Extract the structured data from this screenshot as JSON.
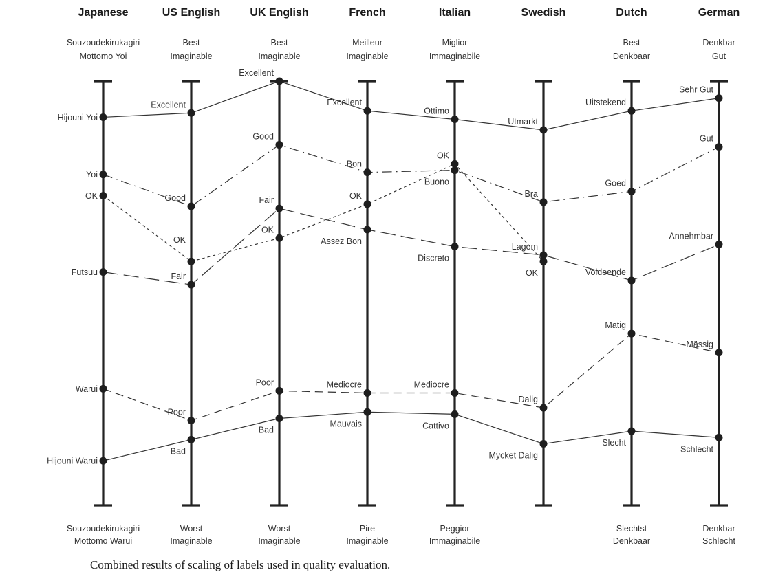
{
  "chart_data": {
    "type": "parallel-axis",
    "caption": "Combined results of scaling of labels used in quality evaluation.",
    "ylim": [
      0,
      100
    ],
    "languages": [
      {
        "name": "Japanese",
        "top": [
          "Souzoudekirukagiri",
          "Mottomo Yoi"
        ],
        "bottom": [
          "Souzoudekirukagiri",
          "Mottomo Warui"
        ],
        "points": [
          {
            "id": "jp-hijouni-yoi",
            "label": "Hijouni Yoi",
            "value": 91.5,
            "side": "left"
          },
          {
            "id": "jp-yoi",
            "label": "Yoi",
            "value": 78,
            "side": "left"
          },
          {
            "id": "jp-ok",
            "label": "OK",
            "value": 73,
            "side": "left"
          },
          {
            "id": "jp-futsuu",
            "label": "Futsuu",
            "value": 55,
            "side": "left"
          },
          {
            "id": "jp-warui",
            "label": "Warui",
            "value": 27.5,
            "side": "left"
          },
          {
            "id": "jp-hijouni-warui",
            "label": "Hijouni Warui",
            "value": 10.5,
            "side": "left"
          }
        ]
      },
      {
        "name": "US English",
        "top": [
          "Best",
          "Imaginable"
        ],
        "bottom": [
          "Worst",
          "Imaginable"
        ],
        "points": [
          {
            "id": "us-excellent",
            "label": "Excellent",
            "value": 92.5,
            "side": "above-left"
          },
          {
            "id": "us-good",
            "label": "Good",
            "value": 70.5,
            "side": "above-left"
          },
          {
            "id": "us-fair",
            "label": "Fair",
            "value": 52,
            "side": "above-left"
          },
          {
            "id": "us-ok",
            "label": "OK",
            "value": 57.5,
            "side": "above-left2"
          },
          {
            "id": "us-poor",
            "label": "Poor",
            "value": 20,
            "side": "above-left"
          },
          {
            "id": "us-bad",
            "label": "Bad",
            "value": 15.5,
            "side": "below-left"
          }
        ]
      },
      {
        "name": "UK English",
        "top": [
          "Best",
          "Imaginable"
        ],
        "bottom": [
          "Worst",
          "Imaginable"
        ],
        "points": [
          {
            "id": "uk-excellent",
            "label": "Excellent",
            "value": 100,
            "side": "above-left"
          },
          {
            "id": "uk-good",
            "label": "Good",
            "value": 85,
            "side": "above-left"
          },
          {
            "id": "uk-fair",
            "label": "Fair",
            "value": 70,
            "side": "above-left"
          },
          {
            "id": "uk-ok",
            "label": "OK",
            "value": 63,
            "side": "above-left"
          },
          {
            "id": "uk-poor",
            "label": "Poor",
            "value": 27,
            "side": "above-left"
          },
          {
            "id": "uk-bad",
            "label": "Bad",
            "value": 20.5,
            "side": "below-left"
          }
        ]
      },
      {
        "name": "French",
        "top": [
          "Meilleur",
          "Imaginable"
        ],
        "bottom": [
          "Pire",
          "Imaginable"
        ],
        "points": [
          {
            "id": "fr-excellent",
            "label": "Excellent",
            "value": 93,
            "side": "above-left"
          },
          {
            "id": "fr-bon",
            "label": "Bon",
            "value": 78.5,
            "side": "above-left"
          },
          {
            "id": "fr-ok",
            "label": "OK",
            "value": 71,
            "side": "above-left"
          },
          {
            "id": "fr-assez-bon",
            "label": "Assez Bon",
            "value": 65,
            "side": "below-left"
          },
          {
            "id": "fr-mediocre",
            "label": "Mediocre",
            "value": 26.5,
            "side": "above-left"
          },
          {
            "id": "fr-mauvais",
            "label": "Mauvais",
            "value": 22,
            "side": "below-left"
          }
        ]
      },
      {
        "name": "Italian",
        "top": [
          "Miglior",
          "Immaginabile"
        ],
        "bottom": [
          "Peggior",
          "Immaginabile"
        ],
        "points": [
          {
            "id": "it-ottimo",
            "label": "Ottimo",
            "value": 91,
            "side": "above-left"
          },
          {
            "id": "it-ok",
            "label": "OK",
            "value": 80.5,
            "side": "above-left"
          },
          {
            "id": "it-buono",
            "label": "Buono",
            "value": 79,
            "side": "below-left"
          },
          {
            "id": "it-discreto",
            "label": "Discreto",
            "value": 61,
            "side": "below-left"
          },
          {
            "id": "it-mediocre",
            "label": "Mediocre",
            "value": 26.5,
            "side": "above-left"
          },
          {
            "id": "it-cattivo",
            "label": "Cattivo",
            "value": 21.5,
            "side": "below-left"
          }
        ]
      },
      {
        "name": "Swedish",
        "top": [],
        "bottom": [],
        "points": [
          {
            "id": "se-utmarkt",
            "label": "Utmarkt",
            "value": 88.5,
            "side": "above-left"
          },
          {
            "id": "se-bra",
            "label": "Bra",
            "value": 71.5,
            "side": "above-left"
          },
          {
            "id": "se-lagom",
            "label": "Lagom",
            "value": 59,
            "side": "above-left"
          },
          {
            "id": "se-ok",
            "label": "OK",
            "value": 57.5,
            "side": "below-left"
          },
          {
            "id": "se-dalig",
            "label": "Dalig",
            "value": 23,
            "side": "above-left"
          },
          {
            "id": "se-mycket-dalig",
            "label": "Mycket Dalig",
            "value": 14.5,
            "side": "below-left"
          }
        ]
      },
      {
        "name": "Dutch",
        "top": [
          "Best",
          "Denkbaar"
        ],
        "bottom": [
          "Slechtst",
          "Denkbaar"
        ],
        "points": [
          {
            "id": "nl-uitstekend",
            "label": "Uitstekend",
            "value": 93,
            "side": "above-left"
          },
          {
            "id": "nl-goed",
            "label": "Goed",
            "value": 74,
            "side": "above-left"
          },
          {
            "id": "nl-voldoende",
            "label": "Voldoende",
            "value": 53,
            "side": "above-left"
          },
          {
            "id": "nl-matig",
            "label": "Matig",
            "value": 40.5,
            "side": "above-left"
          },
          {
            "id": "nl-slecht",
            "label": "Slecht",
            "value": 17.5,
            "side": "below-left"
          }
        ]
      },
      {
        "name": "German",
        "top": [
          "Denkbar",
          "Gut"
        ],
        "bottom": [
          "Denkbar",
          "Schlecht"
        ],
        "points": [
          {
            "id": "de-sehr-gut",
            "label": "Sehr Gut",
            "value": 96,
            "side": "above-left"
          },
          {
            "id": "de-gut",
            "label": "Gut",
            "value": 84.5,
            "side": "above-left"
          },
          {
            "id": "de-annehmbar",
            "label": "Annehmbar",
            "value": 61.5,
            "side": "above-left"
          },
          {
            "id": "de-massig",
            "label": "Mässig",
            "value": 36,
            "side": "above-left"
          },
          {
            "id": "de-schlecht",
            "label": "Schlecht",
            "value": 16,
            "side": "below-left"
          }
        ]
      }
    ],
    "connections": [
      {
        "name": "excellent-line",
        "style": "solid",
        "points": [
          "jp-hijouni-yoi",
          "us-excellent",
          "uk-excellent",
          "fr-excellent",
          "it-ottimo",
          "se-utmarkt",
          "nl-uitstekend",
          "de-sehr-gut"
        ]
      },
      {
        "name": "good-line",
        "style": "dashdot",
        "points": [
          "jp-yoi",
          "us-good",
          "uk-good",
          "fr-bon",
          "it-buono",
          "se-bra",
          "nl-goed",
          "de-gut"
        ]
      },
      {
        "name": "ok-line",
        "style": "dotted",
        "points": [
          "jp-ok",
          "us-ok",
          "uk-ok",
          "fr-ok",
          "it-ok",
          "se-ok"
        ]
      },
      {
        "name": "fair-line",
        "style": "longdash",
        "points": [
          "jp-futsuu",
          "us-fair",
          "uk-fair",
          "fr-assez-bon",
          "it-discreto",
          "se-lagom",
          "nl-voldoende",
          "de-annehmbar"
        ]
      },
      {
        "name": "poor-line",
        "style": "dashed",
        "points": [
          "jp-warui",
          "us-poor",
          "uk-poor",
          "fr-mediocre",
          "it-mediocre",
          "se-dalig",
          "nl-matig",
          "de-massig"
        ]
      },
      {
        "name": "bad-line",
        "style": "solid",
        "points": [
          "jp-hijouni-warui",
          "us-bad",
          "uk-bad",
          "fr-mauvais",
          "it-cattivo",
          "se-mycket-dalig",
          "nl-slecht",
          "de-schlecht"
        ]
      }
    ]
  }
}
